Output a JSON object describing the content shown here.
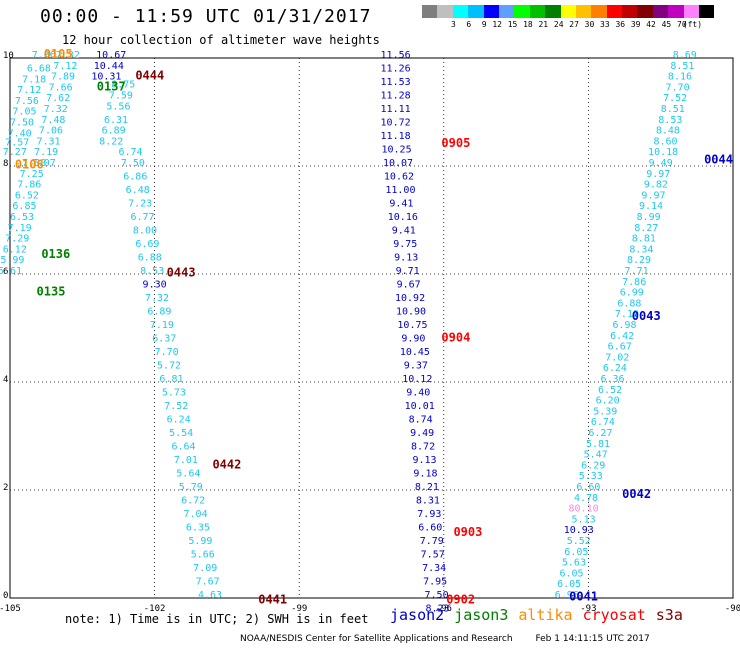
{
  "title": "00:00 - 11:59 UTC 01/31/2017",
  "subtitle": "12 hour collection of altimeter wave heights",
  "colorbar": {
    "colors": [
      "#7f7f7f",
      "#bfbfbf",
      "#00ffff",
      "#00bfff",
      "#0000ff",
      "#5f9fff",
      "#00ff00",
      "#00c000",
      "#008000",
      "#ffff00",
      "#ffc000",
      "#ff8000",
      "#ff0000",
      "#c00000",
      "#800000",
      "#800080",
      "#c000c0",
      "#ff80ff",
      "#000000"
    ],
    "ticks": [
      "",
      "3",
      "6",
      "9",
      "12",
      "15",
      "18",
      "21",
      "24",
      "27",
      "30",
      "33",
      "36",
      "39",
      "42",
      "45",
      "70",
      "(ft)",
      ""
    ]
  },
  "note": "note: 1) Time is in UTC; 2) SWH is in feet",
  "missions": [
    {
      "name": "jason2",
      "color": "#0000cc"
    },
    {
      "name": "jason3",
      "color": "#008000"
    },
    {
      "name": "altika",
      "color": "#ff8c00"
    },
    {
      "name": "cryosat",
      "color": "#ff0000"
    },
    {
      "name": "s3a",
      "color": "#800000"
    }
  ],
  "footer": {
    "credit": "NOAA/NESDIS Center for Satellite Applications and Research",
    "timestamp": "Feb  1 14:11:15 UTC 2017"
  },
  "chart_data": {
    "type": "scatter",
    "title": "00:00 - 11:59 UTC 01/31/2017",
    "subtitle": "12 hour collection of altimeter wave heights",
    "xlabel": "",
    "ylabel": "",
    "xlim": [
      -105,
      -90
    ],
    "ylim": [
      0,
      10
    ],
    "x_ticks": [
      "-105",
      "-102",
      "-99",
      "-96",
      "-93",
      "-90"
    ],
    "y_ticks": [
      "0",
      "2",
      "4",
      "6",
      "8",
      "10"
    ],
    "grid": true,
    "units": "ft",
    "tracks": [
      {
        "mission": "altika",
        "color": "#1ec8f0",
        "points": [
          [
            -104.3,
            10.0,
            "7.06"
          ],
          [
            -104.4,
            9.75,
            "6.68"
          ],
          [
            -104.5,
            9.55,
            "7.18"
          ],
          [
            -104.6,
            9.35,
            "7.12"
          ],
          [
            -104.65,
            9.15,
            "7.56"
          ],
          [
            -104.7,
            8.95,
            "7.05"
          ],
          [
            -104.75,
            8.75,
            "7.50"
          ],
          [
            -104.8,
            8.55,
            "7.40"
          ],
          [
            -104.85,
            8.38,
            "7.57"
          ],
          [
            -104.9,
            8.2,
            "7.27"
          ],
          [
            -104.5,
            8.0,
            "7.38"
          ],
          [
            -104.55,
            7.8,
            "7.25"
          ],
          [
            -104.6,
            7.6,
            "7.86"
          ],
          [
            -104.65,
            7.4,
            "6.52"
          ],
          [
            -104.7,
            7.2,
            "6.85"
          ],
          [
            -104.75,
            7.0,
            "6.53"
          ],
          [
            -104.8,
            6.8,
            "7.19"
          ],
          [
            -104.85,
            6.6,
            "7.29"
          ],
          [
            -104.9,
            6.4,
            "6.12"
          ],
          [
            -104.95,
            6.2,
            "5.99"
          ],
          [
            -105.0,
            6.0,
            "5.61"
          ]
        ]
      },
      {
        "mission": "altika",
        "color": "#1ec8f0",
        "points": [
          [
            -103.8,
            10.0,
            "7.32"
          ],
          [
            -103.85,
            9.8,
            "7.12"
          ],
          [
            -103.9,
            9.6,
            "7.89"
          ],
          [
            -103.95,
            9.4,
            "7.66"
          ],
          [
            -104.0,
            9.2,
            "7.62"
          ],
          [
            -104.05,
            9.0,
            "7.32"
          ],
          [
            -104.1,
            8.8,
            "7.48"
          ],
          [
            -104.15,
            8.6,
            "7.06"
          ],
          [
            -104.2,
            8.4,
            "7.31"
          ],
          [
            -104.25,
            8.2,
            "7.19"
          ],
          [
            -104.3,
            8.0,
            "7.07"
          ]
        ]
      },
      {
        "mission": "jason2",
        "color": "#0000cc",
        "points": [
          [
            -102.9,
            10.0,
            "10.67"
          ],
          [
            -102.95,
            9.8,
            "10.44"
          ],
          [
            -103.0,
            9.6,
            "10.31"
          ]
        ]
      },
      {
        "mission": "altika",
        "color": "#1ec8f0",
        "points": [
          [
            -102.65,
            9.45,
            "8.75"
          ],
          [
            -102.7,
            9.25,
            "7.59"
          ],
          [
            -102.75,
            9.05,
            "5.56"
          ],
          [
            -102.8,
            8.8,
            "6.31"
          ],
          [
            -102.85,
            8.6,
            "6.89"
          ],
          [
            -102.9,
            8.4,
            "8.22"
          ],
          [
            -102.5,
            8.2,
            "6.74"
          ],
          [
            -102.45,
            8.0,
            "7.50"
          ],
          [
            -102.4,
            7.75,
            "6.86"
          ],
          [
            -102.35,
            7.5,
            "6.48"
          ],
          [
            -102.3,
            7.25,
            "7.23"
          ],
          [
            -102.25,
            7.0,
            "6.77"
          ],
          [
            -102.2,
            6.75,
            "8.00"
          ],
          [
            -102.15,
            6.5,
            "6.69"
          ],
          [
            -102.1,
            6.25,
            "6.88"
          ],
          [
            -102.05,
            6.0,
            "8.53"
          ]
        ]
      },
      {
        "mission": "jason2",
        "color": "#0000cc",
        "points": [
          [
            -102.0,
            5.75,
            "9.30"
          ]
        ]
      },
      {
        "mission": "altika",
        "color": "#1ec8f0",
        "points": [
          [
            -101.95,
            5.5,
            "7.32"
          ],
          [
            -101.9,
            5.25,
            "6.89"
          ],
          [
            -101.85,
            5.0,
            "7.19"
          ],
          [
            -101.8,
            4.75,
            "6.37"
          ],
          [
            -101.75,
            4.5,
            "7.70"
          ],
          [
            -101.7,
            4.25,
            "5.72"
          ],
          [
            -101.65,
            4.0,
            "6.81"
          ],
          [
            -101.6,
            3.75,
            "5.73"
          ],
          [
            -101.55,
            3.5,
            "7.52"
          ],
          [
            -101.5,
            3.25,
            "6.24"
          ],
          [
            -101.45,
            3.0,
            "5.54"
          ],
          [
            -101.4,
            2.75,
            "6.64"
          ],
          [
            -101.35,
            2.5,
            "7.01"
          ],
          [
            -101.3,
            2.25,
            "5.64"
          ],
          [
            -101.25,
            2.0,
            "5.79"
          ],
          [
            -101.2,
            1.75,
            "6.72"
          ],
          [
            -101.15,
            1.5,
            "7.04"
          ],
          [
            -101.1,
            1.25,
            "6.35"
          ],
          [
            -101.05,
            1.0,
            "5.99"
          ],
          [
            -101.0,
            0.75,
            "5.66"
          ],
          [
            -100.95,
            0.5,
            "7.09"
          ],
          [
            -100.9,
            0.25,
            "7.67"
          ],
          [
            -100.85,
            0.0,
            "4.63"
          ]
        ]
      },
      {
        "mission": "jason2",
        "color": "#0000cc",
        "points": [
          [
            -97.0,
            10.0,
            "11.56"
          ],
          [
            -97.0,
            9.75,
            "11.26"
          ],
          [
            -97.0,
            9.5,
            "11.53"
          ],
          [
            -97.0,
            9.25,
            "11.28"
          ],
          [
            -97.0,
            9.0,
            "11.11"
          ],
          [
            -97.0,
            8.75,
            "10.72"
          ],
          [
            -97.0,
            8.5,
            "11.18"
          ],
          [
            -96.98,
            8.25,
            "10.25"
          ],
          [
            -96.95,
            8.0,
            "10.07"
          ],
          [
            -96.93,
            7.75,
            "10.62"
          ],
          [
            -96.9,
            7.5,
            "11.00"
          ],
          [
            -96.88,
            7.25,
            "9.41"
          ],
          [
            -96.85,
            7.0,
            "10.16"
          ],
          [
            -96.83,
            6.75,
            "9.41"
          ],
          [
            -96.8,
            6.5,
            "9.75"
          ],
          [
            -96.78,
            6.25,
            "9.13"
          ],
          [
            -96.75,
            6.0,
            "9.71"
          ],
          [
            -96.73,
            5.75,
            "9.67"
          ],
          [
            -96.7,
            5.5,
            "10.92"
          ],
          [
            -96.68,
            5.25,
            "10.90"
          ],
          [
            -96.65,
            5.0,
            "10.75"
          ],
          [
            -96.63,
            4.75,
            "9.90"
          ],
          [
            -96.6,
            4.5,
            "10.45"
          ],
          [
            -96.58,
            4.25,
            "9.37"
          ],
          [
            -96.55,
            4.0,
            "10.12"
          ],
          [
            -96.53,
            3.75,
            "9.40"
          ],
          [
            -96.5,
            3.5,
            "10.01"
          ],
          [
            -96.48,
            3.25,
            "8.74"
          ],
          [
            -96.45,
            3.0,
            "9.49"
          ],
          [
            -96.43,
            2.75,
            "8.72"
          ],
          [
            -96.4,
            2.5,
            "9.13"
          ],
          [
            -96.38,
            2.25,
            "9.18"
          ],
          [
            -96.35,
            2.0,
            "8.21"
          ],
          [
            -96.33,
            1.75,
            "8.31"
          ],
          [
            -96.3,
            1.5,
            "7.93"
          ],
          [
            -96.28,
            1.25,
            "6.60"
          ],
          [
            -96.25,
            1.0,
            "7.79"
          ],
          [
            -96.23,
            0.75,
            "7.57"
          ],
          [
            -96.2,
            0.5,
            "7.34"
          ],
          [
            -96.18,
            0.25,
            "7.95"
          ],
          [
            -96.15,
            0.0,
            "7.50"
          ],
          [
            -96.13,
            -0.25,
            "8.23"
          ]
        ]
      },
      {
        "mission": "altika",
        "color": "#1ec8f0",
        "points": [
          [
            -91.0,
            10.0,
            "8.69"
          ],
          [
            -91.05,
            9.8,
            "8.51"
          ],
          [
            -91.1,
            9.6,
            "8.16"
          ],
          [
            -91.15,
            9.4,
            "7.70"
          ],
          [
            -91.2,
            9.2,
            "7.52"
          ],
          [
            -91.25,
            9.0,
            "8.51"
          ],
          [
            -91.3,
            8.8,
            "8.53"
          ],
          [
            -91.35,
            8.6,
            "8.48"
          ],
          [
            -91.4,
            8.4,
            "8.60"
          ],
          [
            -91.45,
            8.2,
            "10.18"
          ],
          [
            -91.5,
            8.0,
            "9.49"
          ],
          [
            -91.55,
            7.8,
            "9.97"
          ],
          [
            -91.6,
            7.6,
            "9.82"
          ],
          [
            -91.65,
            7.4,
            "9.97"
          ],
          [
            -91.7,
            7.2,
            "9.14"
          ],
          [
            -91.75,
            7.0,
            "8.99"
          ],
          [
            -91.8,
            6.8,
            "8.27"
          ],
          [
            -91.85,
            6.6,
            "8.81"
          ],
          [
            -91.9,
            6.4,
            "8.34"
          ],
          [
            -91.95,
            6.2,
            "8.29"
          ],
          [
            -92.0,
            6.0,
            "7.71"
          ],
          [
            -92.05,
            5.8,
            "7.86"
          ],
          [
            -92.1,
            5.6,
            "6.99"
          ],
          [
            -92.15,
            5.4,
            "6.88"
          ],
          [
            -92.2,
            5.2,
            "7.19"
          ],
          [
            -92.25,
            5.0,
            "6.98"
          ],
          [
            -92.3,
            4.8,
            "6.42"
          ],
          [
            -92.35,
            4.6,
            "6.67"
          ],
          [
            -92.4,
            4.4,
            "7.02"
          ],
          [
            -92.45,
            4.2,
            "6.24"
          ],
          [
            -92.5,
            4.0,
            "6.36"
          ],
          [
            -92.55,
            3.8,
            "6.52"
          ],
          [
            -92.6,
            3.6,
            "6.20"
          ],
          [
            -92.65,
            3.4,
            "5.39"
          ],
          [
            -92.7,
            3.2,
            "6.74"
          ],
          [
            -92.75,
            3.0,
            "6.27"
          ],
          [
            -92.8,
            2.8,
            "5.81"
          ],
          [
            -92.85,
            2.6,
            "5.47"
          ],
          [
            -92.9,
            2.4,
            "6.29"
          ],
          [
            -92.95,
            2.2,
            "5.33"
          ],
          [
            -93.0,
            2.0,
            "6.60"
          ],
          [
            -93.05,
            1.8,
            "4.78"
          ]
        ]
      },
      {
        "mission": "altika",
        "color": "#1ec8f0",
        "points": [
          [
            -93.1,
            1.4,
            "5.13"
          ],
          [
            -93.2,
            1.0,
            "5.52"
          ],
          [
            -93.25,
            0.8,
            "6.05"
          ],
          [
            -93.3,
            0.6,
            "5.63"
          ],
          [
            -93.35,
            0.4,
            "6.05"
          ],
          [
            -93.4,
            0.2,
            "6.05"
          ],
          [
            -93.45,
            0.0,
            "6.96"
          ]
        ]
      },
      {
        "mission": "cryosat",
        "color": "#ff88dd",
        "points": [
          [
            -93.1,
            1.6,
            "80.10"
          ]
        ]
      },
      {
        "mission": "jason2",
        "color": "#0000cc",
        "points": [
          [
            -93.2,
            1.2,
            "10.93"
          ]
        ]
      }
    ],
    "pass_labels": [
      {
        "text": "0105",
        "x": -104.0,
        "y": 10.0,
        "color": "#ff8c00"
      },
      {
        "text": "0444",
        "x": -102.1,
        "y": 9.6,
        "color": "#800000"
      },
      {
        "text": "0137",
        "x": -102.9,
        "y": 9.4,
        "color": "#008000"
      },
      {
        "text": "0905",
        "x": -95.75,
        "y": 8.35,
        "color": "#ff0000"
      },
      {
        "text": "0044",
        "x": -90.3,
        "y": 8.05,
        "color": "#0000cc"
      },
      {
        "text": "0106",
        "x": -104.6,
        "y": 7.95,
        "color": "#ff8c00"
      },
      {
        "text": "0136",
        "x": -104.05,
        "y": 6.3,
        "color": "#008000"
      },
      {
        "text": "0443",
        "x": -101.45,
        "y": 5.95,
        "color": "#800000"
      },
      {
        "text": "0135",
        "x": -104.15,
        "y": 5.6,
        "color": "#008000"
      },
      {
        "text": "0043",
        "x": -91.8,
        "y": 5.15,
        "color": "#0000cc"
      },
      {
        "text": "0904",
        "x": -95.75,
        "y": 4.75,
        "color": "#ff0000"
      },
      {
        "text": "0442",
        "x": -100.5,
        "y": 2.4,
        "color": "#800000"
      },
      {
        "text": "0042",
        "x": -92.0,
        "y": 1.85,
        "color": "#0000cc"
      },
      {
        "text": "0903",
        "x": -95.5,
        "y": 1.15,
        "color": "#ff0000"
      },
      {
        "text": "0441",
        "x": -99.55,
        "y": -0.1,
        "color": "#800000"
      },
      {
        "text": "0902",
        "x": -95.65,
        "y": -0.1,
        "color": "#ff0000"
      },
      {
        "text": "0041",
        "x": -93.1,
        "y": -0.05,
        "color": "#0000cc"
      }
    ]
  }
}
